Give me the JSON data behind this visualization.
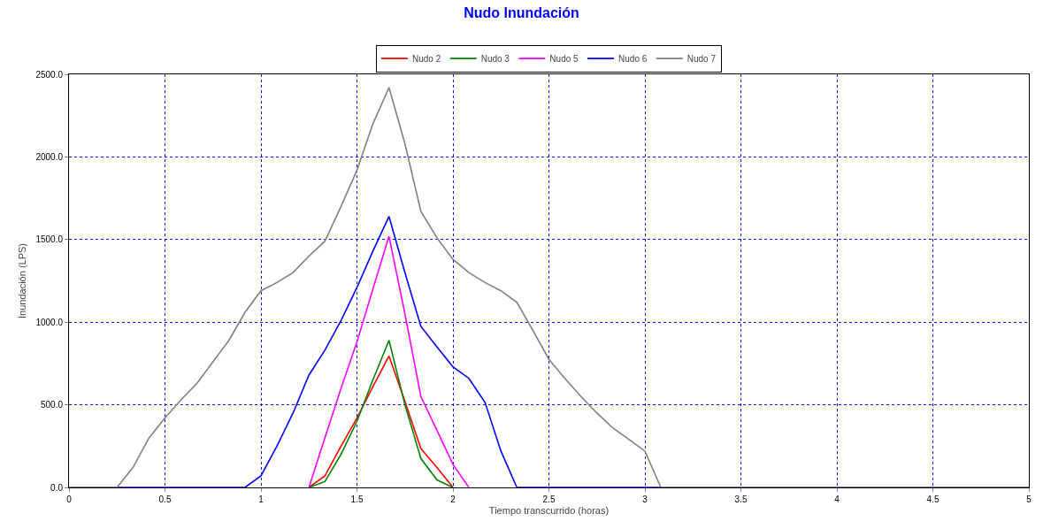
{
  "chart_data": {
    "type": "line",
    "title": "Nudo Inundación",
    "xlabel": "Tiempo transcurrido (horas)",
    "ylabel": "Inundación (LPS)",
    "xlim": [
      0,
      5
    ],
    "xticks": [
      0,
      0.5,
      1,
      1.5,
      2,
      2.5,
      3,
      3.5,
      4,
      4.5,
      5
    ],
    "ylim": [
      0,
      2500
    ],
    "yticks": [
      {
        "value": 0,
        "label": "0.0"
      },
      {
        "value": 500,
        "label": "500.0"
      },
      {
        "value": 1000,
        "label": "1000.0"
      },
      {
        "value": 1500,
        "label": "1500.0"
      },
      {
        "value": 2000,
        "label": "2000.0"
      },
      {
        "value": 2500,
        "label": "2500.0"
      }
    ],
    "grid": true,
    "legend": "top",
    "marker": "none",
    "line_style": "solid",
    "series": [
      {
        "name": "Nudo 2",
        "color": "#ff0000",
        "x": [
          1.25,
          1.333,
          1.417,
          1.5,
          1.583,
          1.667,
          1.75,
          1.833,
          1.917,
          2
        ],
        "values": [
          0,
          70,
          250,
          420,
          610,
          795,
          520,
          235,
          120,
          0
        ]
      },
      {
        "name": "Nudo 3",
        "color": "#008000",
        "x": [
          1.25,
          1.333,
          1.417,
          1.5,
          1.583,
          1.667,
          1.75,
          1.833,
          1.917,
          2
        ],
        "values": [
          0,
          35,
          200,
          400,
          650,
          890,
          500,
          175,
          45,
          0
        ]
      },
      {
        "name": "Nudo 5",
        "color": "#ff00ff",
        "x": [
          1.25,
          1.333,
          1.417,
          1.5,
          1.583,
          1.667,
          1.75,
          1.833,
          1.917,
          2,
          2.083
        ],
        "values": [
          0,
          300,
          600,
          880,
          1200,
          1520,
          1050,
          550,
          345,
          140,
          0
        ]
      },
      {
        "name": "Nudo 6",
        "color": "#0000ff",
        "x": [
          0,
          0.917,
          1,
          1.083,
          1.167,
          1.25,
          1.333,
          1.417,
          1.5,
          1.583,
          1.667,
          1.75,
          1.833,
          1.917,
          2,
          2.083,
          2.167,
          2.25,
          2.333,
          5
        ],
        "values": [
          0,
          0,
          70,
          250,
          450,
          680,
          830,
          1010,
          1210,
          1430,
          1640,
          1300,
          975,
          850,
          730,
          660,
          515,
          220,
          0,
          0
        ]
      },
      {
        "name": "Nudo 7",
        "color": "#808080",
        "x": [
          0,
          0.25,
          0.333,
          0.417,
          0.5,
          0.583,
          0.667,
          0.75,
          0.833,
          0.917,
          1,
          1.083,
          1.167,
          1.25,
          1.333,
          1.417,
          1.5,
          1.583,
          1.667,
          1.75,
          1.833,
          1.917,
          2,
          2.083,
          2.167,
          2.25,
          2.333,
          2.417,
          2.5,
          2.583,
          2.667,
          2.75,
          2.833,
          2.917,
          3,
          3.083,
          5
        ],
        "values": [
          0,
          0,
          120,
          300,
          420,
          530,
          630,
          760,
          890,
          1060,
          1190,
          1240,
          1300,
          1400,
          1490,
          1700,
          1920,
          2200,
          2420,
          2080,
          1670,
          1510,
          1380,
          1300,
          1240,
          1190,
          1120,
          950,
          775,
          660,
          550,
          450,
          360,
          290,
          220,
          0,
          0
        ]
      }
    ]
  }
}
